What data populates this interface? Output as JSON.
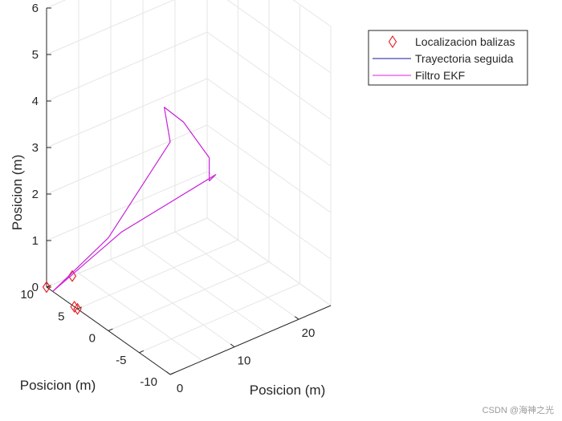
{
  "chart_data": {
    "type": "line3d",
    "view": "default 3-D view (azimuth -37.5, elevation 30)",
    "title": "",
    "xlabel": "Posicion (m)",
    "ylabel": "Posicion (m)",
    "zlabel": "Posicion (m)",
    "xlim": [
      0,
      25
    ],
    "ylim": [
      -10,
      10
    ],
    "zlim": [
      0,
      6
    ],
    "xticks": [
      0,
      10,
      20
    ],
    "yticks": [
      -10,
      -5,
      0,
      5,
      10
    ],
    "zticks": [
      0,
      1,
      2,
      3,
      4,
      5,
      6
    ],
    "grid": true,
    "legend_position": "top-right",
    "series": [
      {
        "name": "Localizacion balizas",
        "kind": "markers",
        "marker": "diamond",
        "color": "#e8191d",
        "points": [
          [
            0,
            10,
            0
          ],
          [
            4,
            10,
            0
          ],
          [
            0,
            5,
            0
          ],
          [
            0,
            5.5,
            0
          ]
        ]
      },
      {
        "name": "Trayectoria seguida",
        "kind": "line",
        "color": "#1515a0",
        "points": [
          [
            0,
            9,
            0
          ],
          [
            0,
            0,
            2
          ],
          [
            0,
            -10,
            5
          ],
          [
            1,
            -8,
            5.5
          ],
          [
            4,
            -8,
            5
          ],
          [
            8,
            -8,
            4
          ],
          [
            8,
            -8,
            3.5
          ],
          [
            9.5,
            -7.5,
            3.5
          ],
          [
            2,
            0,
            2
          ],
          [
            0,
            9,
            0
          ]
        ]
      },
      {
        "name": "Filtro EKF",
        "kind": "line",
        "color": "#e21ce2",
        "points": [
          [
            0,
            9,
            0
          ],
          [
            0,
            0,
            2
          ],
          [
            0,
            -10,
            5
          ],
          [
            1,
            -8,
            5.5
          ],
          [
            4,
            -8,
            5
          ],
          [
            8,
            -8,
            4
          ],
          [
            8,
            -8,
            3.5
          ],
          [
            9.5,
            -7.5,
            3.5
          ],
          [
            2,
            0,
            2
          ],
          [
            0,
            9,
            0
          ]
        ]
      }
    ]
  },
  "watermark": "CSDN @海神之光"
}
